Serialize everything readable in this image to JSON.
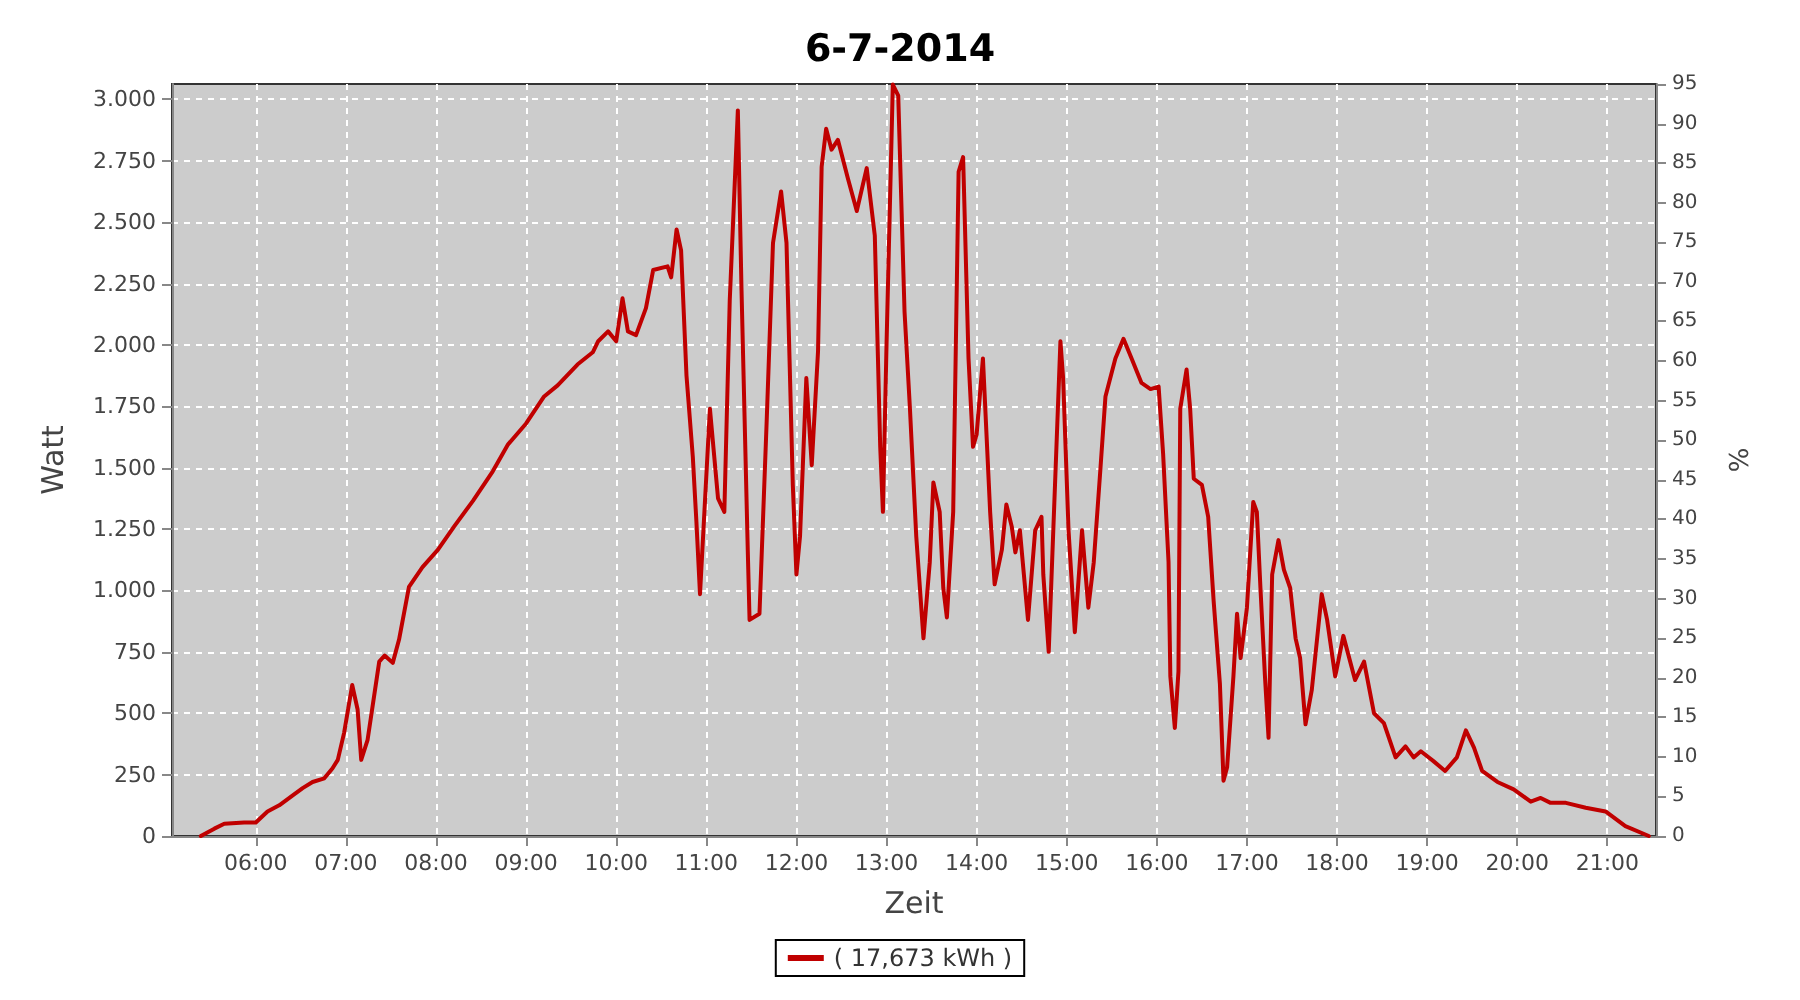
{
  "chart_data": {
    "type": "line",
    "title": "6-7-2014",
    "xlabel": "Zeit",
    "ylabel": "Watt",
    "y2label": "%",
    "xlim": [
      5.07,
      21.54
    ],
    "xticks": [
      {
        "value": 6,
        "label": "06:00"
      },
      {
        "value": 7,
        "label": "07:00"
      },
      {
        "value": 8,
        "label": "08:00"
      },
      {
        "value": 9,
        "label": "09:00"
      },
      {
        "value": 10,
        "label": "10:00"
      },
      {
        "value": 11,
        "label": "11:00"
      },
      {
        "value": 12,
        "label": "12:00"
      },
      {
        "value": 13,
        "label": "13:00"
      },
      {
        "value": 14,
        "label": "14:00"
      },
      {
        "value": 15,
        "label": "15:00"
      },
      {
        "value": 16,
        "label": "16:00"
      },
      {
        "value": 17,
        "label": "17:00"
      },
      {
        "value": 18,
        "label": "18:00"
      },
      {
        "value": 19,
        "label": "19:00"
      },
      {
        "value": 20,
        "label": "20:00"
      },
      {
        "value": 21,
        "label": "21:00"
      }
    ],
    "ylim": [
      0,
      3062.5
    ],
    "yticks": [
      0,
      250,
      500,
      750,
      {
        "value": 1000,
        "label": "1.000"
      },
      {
        "value": 1250,
        "label": "1.250"
      },
      {
        "value": 1500,
        "label": "1.500"
      },
      {
        "value": 1750,
        "label": "1.750"
      },
      {
        "value": 2000,
        "label": "2.000"
      },
      {
        "value": 2250,
        "label": "2.250"
      },
      {
        "value": 2500,
        "label": "2.500"
      },
      {
        "value": 2750,
        "label": "2.750"
      },
      {
        "value": 3000,
        "label": "3.000"
      }
    ],
    "y2lim": [
      0,
      95
    ],
    "y2ticks": [
      0,
      5,
      10,
      15,
      20,
      25,
      30,
      35,
      40,
      45,
      50,
      55,
      60,
      65,
      70,
      75,
      80,
      85,
      90,
      95
    ],
    "grid": true,
    "legend": "bottom",
    "marker": "none",
    "line_style": "solid",
    "series": [
      {
        "name": "( 17,673 kWh )",
        "color": "#c00000",
        "x": [
          5.39,
          5.54,
          5.65,
          5.87,
          6.0,
          6.13,
          6.26,
          6.41,
          6.52,
          6.63,
          6.76,
          6.85,
          6.91,
          6.98,
          7.07,
          7.13,
          7.17,
          7.24,
          7.37,
          7.43,
          7.52,
          7.59,
          7.7,
          7.85,
          8.02,
          8.2,
          8.41,
          8.63,
          8.8,
          9.0,
          9.2,
          9.35,
          9.57,
          9.74,
          9.8,
          9.91,
          10.0,
          10.07,
          10.13,
          10.22,
          10.33,
          10.41,
          10.57,
          10.61,
          10.67,
          10.72,
          10.78,
          10.85,
          10.89,
          10.93,
          11.04,
          11.13,
          11.2,
          11.26,
          11.35,
          11.39,
          11.46,
          11.48,
          11.59,
          11.67,
          11.74,
          11.83,
          11.89,
          11.96,
          12.0,
          12.04,
          12.11,
          12.17,
          12.24,
          12.28,
          12.33,
          12.39,
          12.46,
          12.57,
          12.67,
          12.78,
          12.87,
          12.93,
          12.96,
          13.0,
          13.07,
          13.13,
          13.2,
          13.26,
          13.33,
          13.41,
          13.48,
          13.52,
          13.59,
          13.63,
          13.67,
          13.74,
          13.8,
          13.85,
          13.91,
          13.96,
          14.0,
          14.07,
          14.15,
          14.2,
          14.28,
          14.33,
          14.39,
          14.43,
          14.48,
          14.57,
          14.65,
          14.72,
          14.74,
          14.8,
          14.89,
          14.93,
          14.96,
          15.02,
          15.09,
          15.17,
          15.24,
          15.3,
          15.37,
          15.43,
          15.54,
          15.63,
          15.72,
          15.83,
          15.93,
          16.02,
          16.07,
          16.13,
          16.15,
          16.2,
          16.24,
          16.26,
          16.33,
          16.37,
          16.41,
          16.5,
          16.57,
          16.63,
          16.7,
          16.74,
          16.78,
          16.85,
          16.89,
          16.93,
          17.0,
          17.07,
          17.11,
          17.15,
          17.2,
          17.24,
          17.28,
          17.35,
          17.41,
          17.48,
          17.54,
          17.59,
          17.65,
          17.72,
          17.83,
          17.89,
          17.98,
          18.07,
          18.2,
          18.3,
          18.41,
          18.52,
          18.65,
          18.76,
          18.85,
          18.93,
          19.07,
          19.2,
          19.33,
          19.43,
          19.52,
          19.61,
          19.78,
          19.96,
          20.15,
          20.26,
          20.37,
          20.54,
          20.76,
          20.98,
          21.2,
          21.46
        ],
        "values": [
          0,
          30,
          50,
          55,
          55,
          100,
          125,
          165,
          195,
          220,
          235,
          275,
          310,
          420,
          615,
          515,
          310,
          390,
          710,
          735,
          705,
          800,
          1015,
          1095,
          1165,
          1260,
          1365,
          1485,
          1595,
          1680,
          1790,
          1835,
          1920,
          1970,
          2015,
          2055,
          2015,
          2190,
          2055,
          2040,
          2150,
          2305,
          2320,
          2275,
          2470,
          2385,
          1875,
          1545,
          1280,
          985,
          1740,
          1375,
          1320,
          2180,
          2955,
          2235,
          1165,
          880,
          905,
          1690,
          2415,
          2625,
          2415,
          1430,
          1065,
          1220,
          1865,
          1510,
          1975,
          2725,
          2880,
          2795,
          2835,
          2680,
          2545,
          2720,
          2445,
          1585,
          1320,
          2000,
          3060,
          3015,
          2135,
          1740,
          1220,
          805,
          1115,
          1440,
          1320,
          1010,
          890,
          1320,
          2705,
          2765,
          1945,
          1585,
          1635,
          1945,
          1320,
          1025,
          1165,
          1350,
          1260,
          1155,
          1245,
          880,
          1245,
          1300,
          1065,
          750,
          1625,
          2015,
          1865,
          1245,
          830,
          1245,
          930,
          1115,
          1475,
          1790,
          1945,
          2025,
          1945,
          1845,
          1820,
          1830,
          1555,
          1115,
          650,
          440,
          670,
          1740,
          1900,
          1740,
          1455,
          1430,
          1300,
          960,
          620,
          225,
          280,
          650,
          905,
          725,
          930,
          1360,
          1320,
          1010,
          650,
          400,
          1065,
          1205,
          1085,
          1010,
          805,
          725,
          455,
          595,
          985,
          880,
          650,
          815,
          635,
          710,
          500,
          460,
          320,
          365,
          320,
          345,
          305,
          265,
          320,
          430,
          360,
          265,
          220,
          190,
          140,
          155,
          135,
          135,
          115,
          100,
          40,
          0
        ]
      }
    ]
  }
}
